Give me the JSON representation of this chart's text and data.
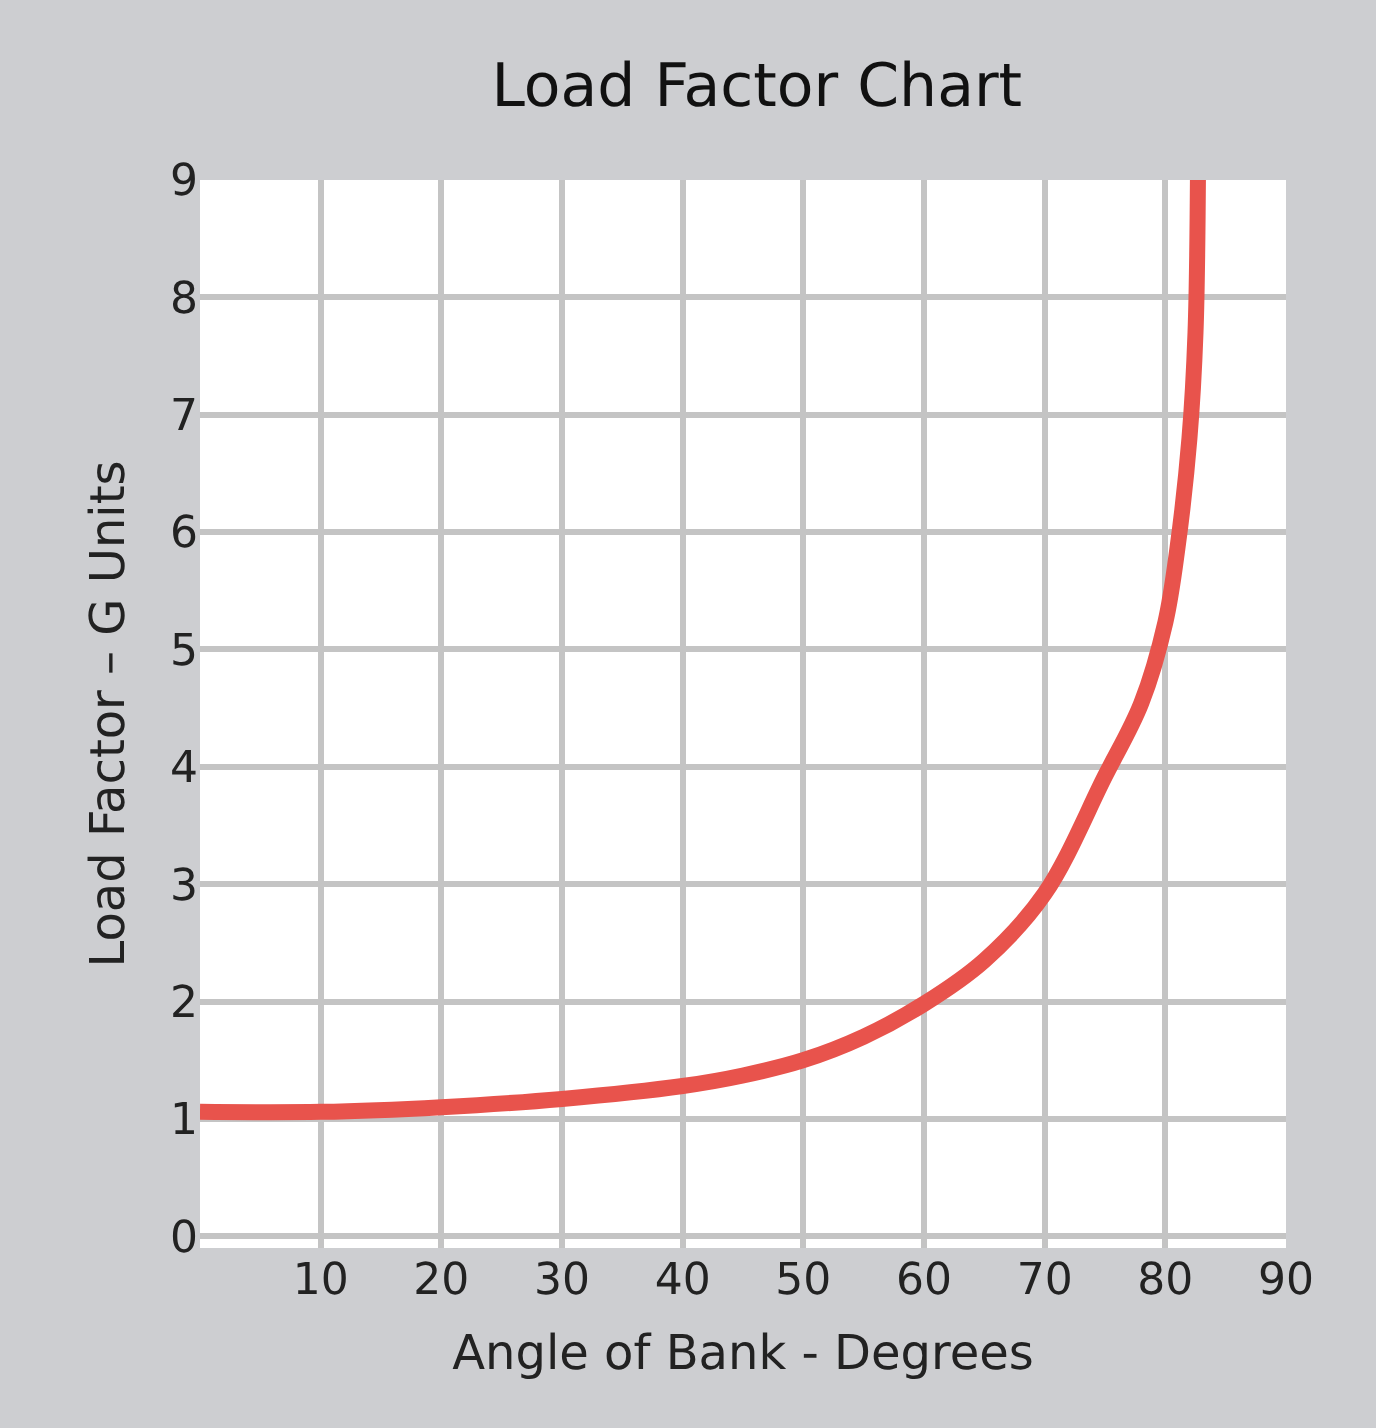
{
  "chart_data": {
    "type": "line",
    "title": "Load Factor Chart",
    "xlabel": "Angle of Bank - Degrees",
    "ylabel": "Load Factor – G Units",
    "xlim": [
      0,
      90
    ],
    "xticks": [
      10,
      20,
      30,
      40,
      50,
      60,
      70,
      80,
      90
    ],
    "ylim": [
      -0.1,
      9
    ],
    "yticks": [
      0,
      1,
      2,
      3,
      4,
      5,
      6,
      7,
      8,
      9
    ],
    "grid": true,
    "marker": "none",
    "line_style": "solid",
    "series": [
      {
        "color": "#e8534c",
        "x": [
          0,
          10,
          20,
          30,
          40,
          45,
          50,
          55,
          60,
          65,
          70,
          75,
          78,
          80,
          81,
          82,
          82.5,
          82.7
        ],
        "values": [
          1.06,
          1.06,
          1.1,
          1.17,
          1.28,
          1.37,
          1.5,
          1.7,
          1.98,
          2.35,
          2.92,
          3.92,
          4.54,
          5.23,
          5.86,
          6.8,
          7.7,
          9
        ]
      }
    ]
  }
}
